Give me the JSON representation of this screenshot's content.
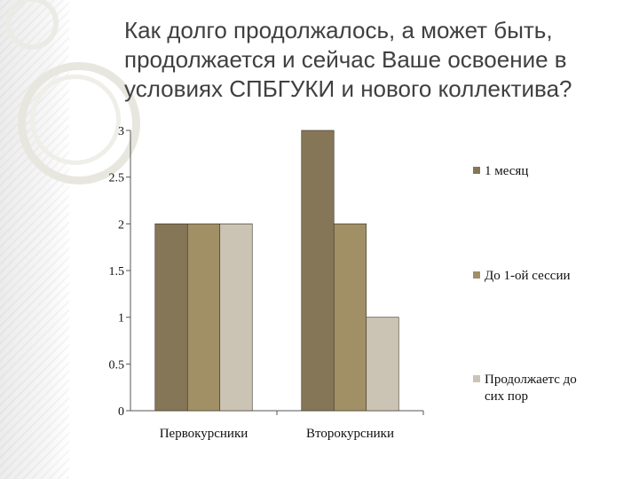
{
  "page": {
    "title": "Как долго продолжалось, а может быть, продолжается и сейчас Ваше освоение в условиях СПБГУКИ и нового коллектива?"
  },
  "chart_data": {
    "type": "bar",
    "categories": [
      "Первокурсники",
      "Второкурсники"
    ],
    "series": [
      {
        "name": "1 месяц",
        "values": [
          2,
          3
        ],
        "color": "#857657"
      },
      {
        "name": "До 1-ой сессии",
        "values": [
          2,
          2
        ],
        "color": "#a19066"
      },
      {
        "name": "Продолжаетс до сих пор",
        "values": [
          2,
          1
        ],
        "color": "#cbc4b5"
      }
    ],
    "yticks": [
      "0",
      "0.5",
      "1",
      "1.5",
      "2",
      "2.5",
      "3"
    ],
    "ylim": [
      0,
      3
    ],
    "grid": false,
    "legend_position": "right"
  }
}
